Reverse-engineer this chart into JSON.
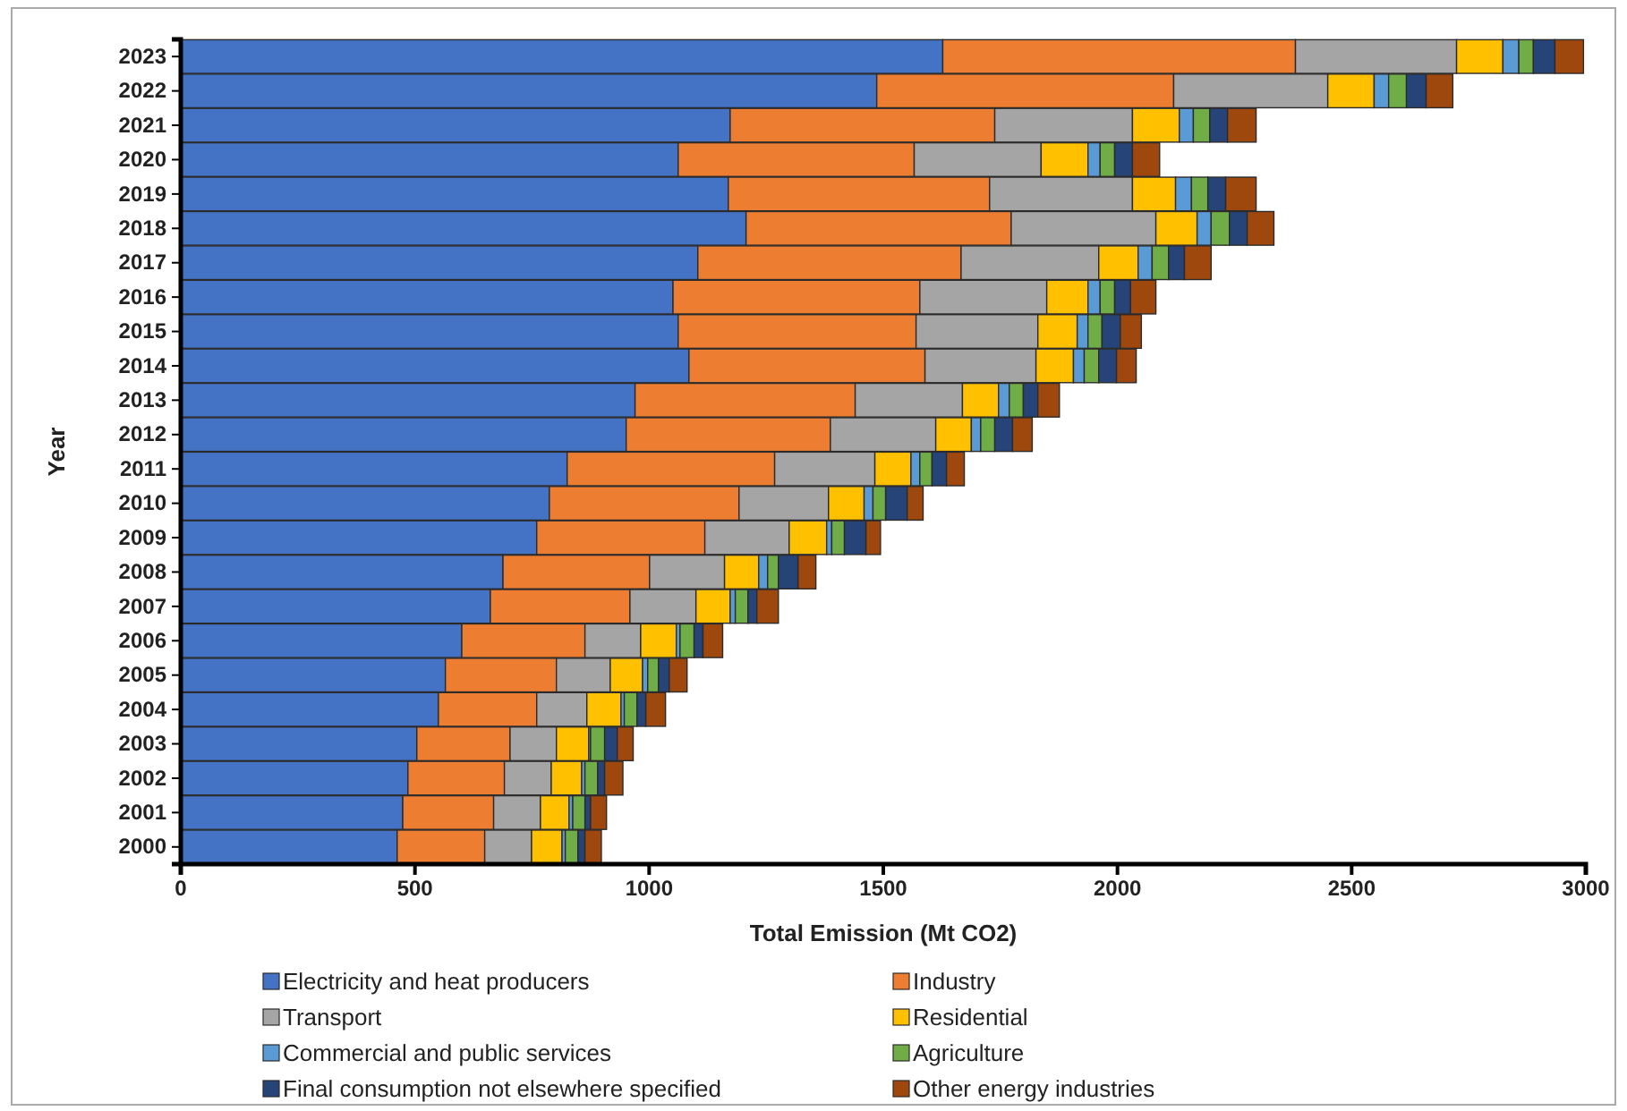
{
  "chart_data": {
    "type": "bar",
    "orientation": "horizontal",
    "stacked": true,
    "xlabel": "Total Emission (Mt CO2)",
    "ylabel": "Year",
    "categories": [
      "2023",
      "2022",
      "2021",
      "2020",
      "2019",
      "2018",
      "2017",
      "2016",
      "2015",
      "2014",
      "2013",
      "2012",
      "2011",
      "2010",
      "2009",
      "2008",
      "2007",
      "2006",
      "2005",
      "2004",
      "2003",
      "2002",
      "2001",
      "2000"
    ],
    "xlim": [
      0,
      3000
    ],
    "xticks": [
      0,
      500,
      1000,
      1500,
      2000,
      2500,
      3000
    ],
    "grid": false,
    "legend": "bottom",
    "series": [
      {
        "name": "Electricity and heat producers",
        "color": "#4472c4",
        "values": [
          1627,
          1486,
          1173,
          1062,
          1169,
          1207,
          1104,
          1051,
          1062,
          1085,
          970,
          951,
          825,
          787,
          760,
          688,
          661,
          600,
          565,
          550,
          504,
          485,
          474,
          462
        ]
      },
      {
        "name": "Industry",
        "color": "#ed7d31",
        "values": [
          753,
          634,
          565,
          504,
          558,
          566,
          562,
          527,
          508,
          504,
          470,
          436,
          443,
          405,
          359,
          313,
          298,
          263,
          237,
          210,
          199,
          206,
          194,
          187
        ]
      },
      {
        "name": "Transport",
        "color": "#a5a5a5",
        "values": [
          344,
          329,
          294,
          271,
          305,
          309,
          294,
          271,
          260,
          237,
          229,
          225,
          214,
          191,
          180,
          160,
          141,
          119,
          115,
          107,
          99,
          100,
          100,
          100
        ]
      },
      {
        "name": "Residential",
        "color": "#ffc000",
        "values": [
          99,
          99,
          100,
          100,
          92,
          88,
          84,
          88,
          84,
          80,
          77,
          76,
          77,
          76,
          80,
          73,
          73,
          76,
          69,
          73,
          69,
          65,
          61,
          65
        ]
      },
      {
        "name": "Commercial and public services",
        "color": "#5b9bd5",
        "values": [
          34,
          31,
          30,
          26,
          34,
          30,
          30,
          26,
          23,
          23,
          23,
          20,
          19,
          19,
          11,
          19,
          11,
          8,
          11,
          7,
          4,
          7,
          8,
          7
        ]
      },
      {
        "name": "Agriculture",
        "color": "#70ad47",
        "values": [
          31,
          38,
          35,
          31,
          35,
          39,
          35,
          31,
          30,
          31,
          30,
          30,
          26,
          27,
          27,
          23,
          27,
          30,
          23,
          27,
          30,
          27,
          26,
          27
        ]
      },
      {
        "name": "Final consumption not elsewhere specified",
        "color": "#264478",
        "values": [
          46,
          42,
          38,
          38,
          38,
          38,
          34,
          34,
          39,
          38,
          31,
          38,
          31,
          46,
          46,
          42,
          19,
          19,
          23,
          19,
          27,
          15,
          12,
          15
        ]
      },
      {
        "name": "Other energy industries",
        "color": "#9e480e",
        "values": [
          61,
          57,
          61,
          58,
          65,
          57,
          57,
          54,
          45,
          42,
          46,
          42,
          38,
          34,
          31,
          38,
          46,
          42,
          38,
          42,
          34,
          39,
          34,
          35
        ]
      }
    ]
  }
}
